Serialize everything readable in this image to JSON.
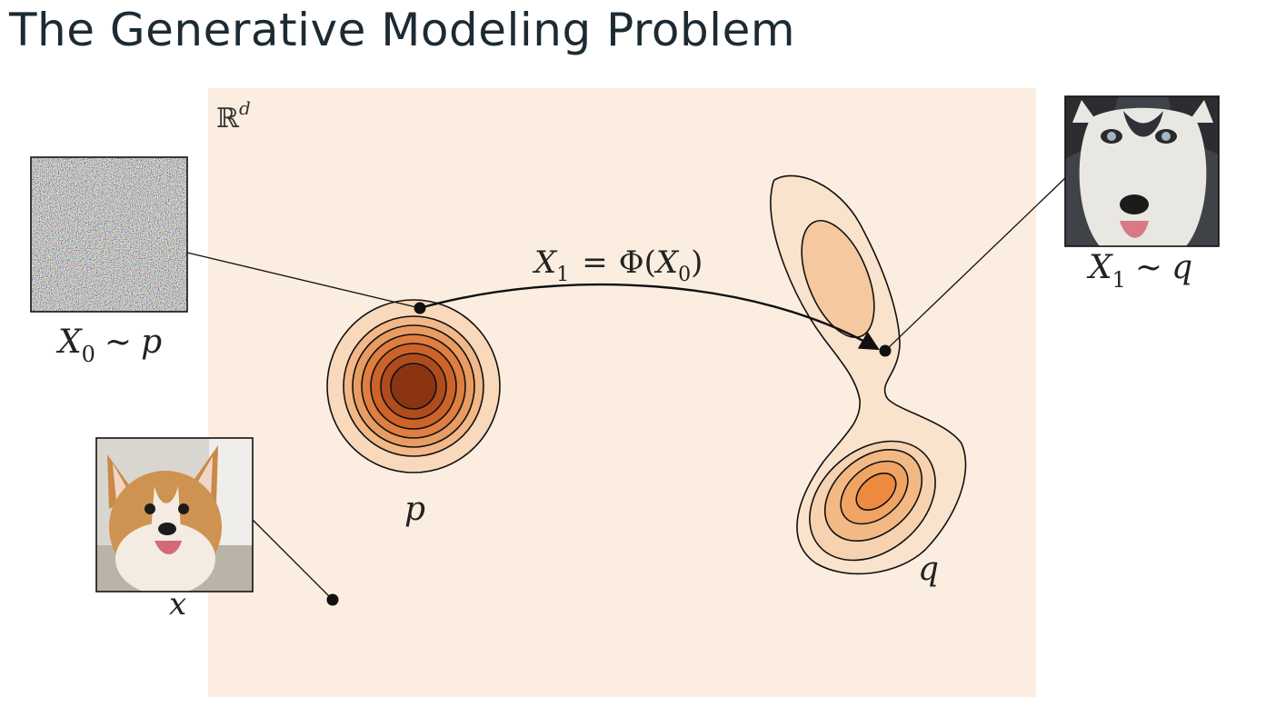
{
  "slide": {
    "title": "The Generative Modeling  Problem"
  },
  "diagram": {
    "space_label": {
      "base": "ℝ",
      "superscript": "d"
    },
    "map_label": {
      "lhs_var": "X",
      "lhs_sub": "1",
      "equals": "=",
      "func": "Φ(",
      "arg_var": "X",
      "arg_sub": "0",
      "close": ")"
    },
    "noise_label": {
      "var": "X",
      "sub": "0",
      "rel": "~",
      "dist": "p"
    },
    "target_label": {
      "var": "X",
      "sub": "1",
      "rel": "~",
      "dist": "q"
    },
    "sample_label": "x",
    "source_dist_label": "p",
    "target_dist_label": "q",
    "images": {
      "noise": "noise-image",
      "husky": "husky-photo",
      "corgi": "corgi-photo"
    },
    "colors": {
      "background": "#fbeee1",
      "source_core": "#8a3412",
      "target_core": "#ec8a3f",
      "light_fill": "#f8dcc0",
      "outline": "#111111"
    }
  }
}
